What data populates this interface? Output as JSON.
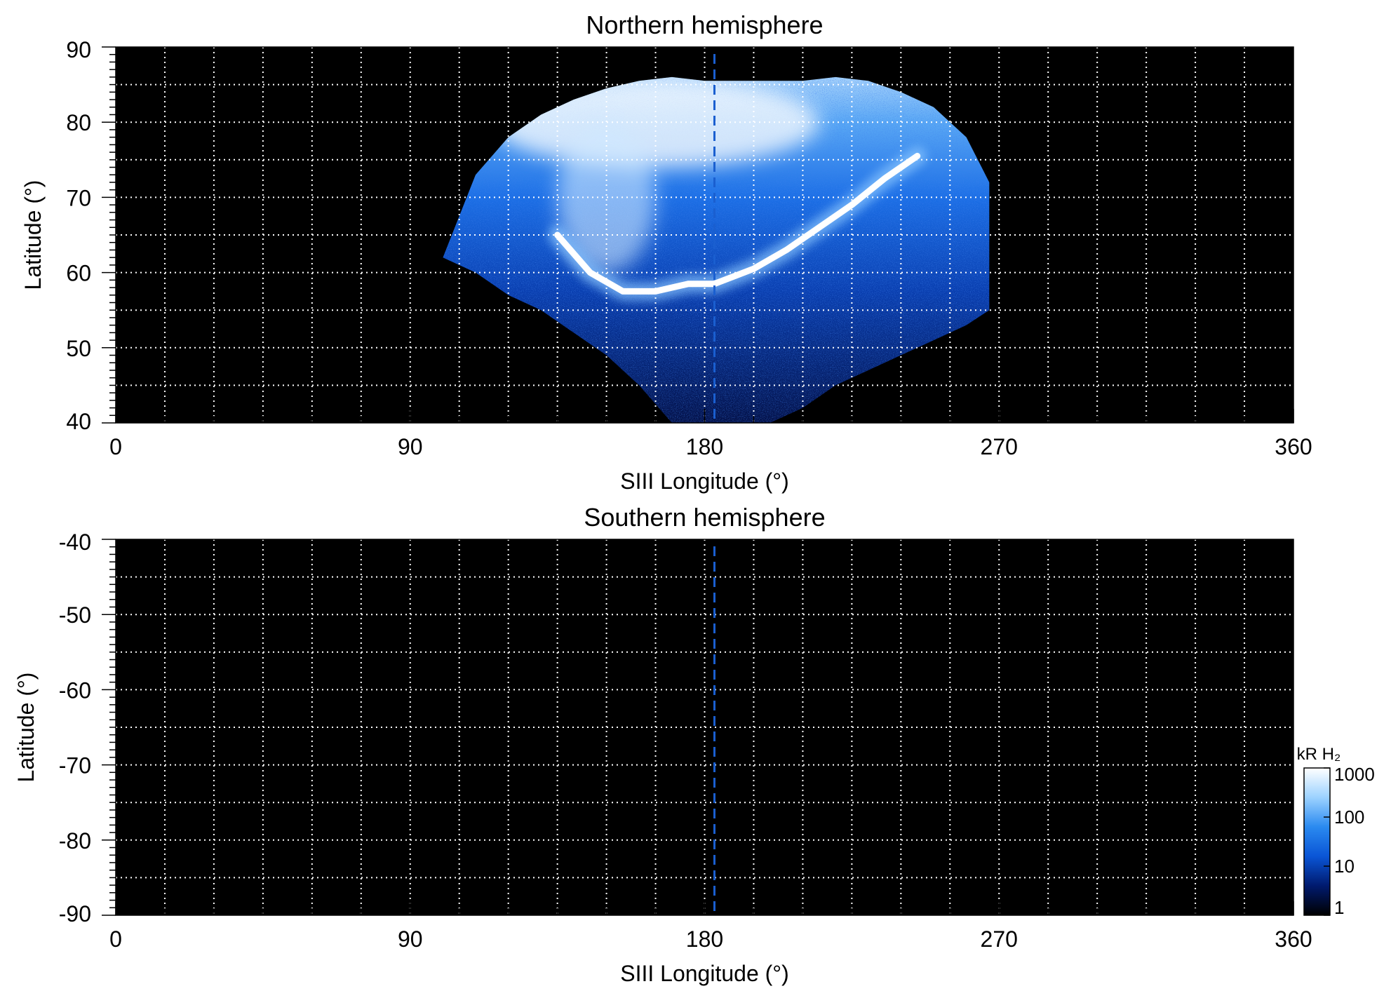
{
  "chart_data": [
    {
      "type": "heatmap",
      "title": "Northern hemisphere",
      "xlabel": "SIII Longitude (°)",
      "ylabel": "Latitude (°)",
      "xlim": [
        0,
        360
      ],
      "ylim": [
        40,
        90
      ],
      "x_ticks": [
        0,
        90,
        180,
        270,
        360
      ],
      "y_ticks": [
        40,
        50,
        60,
        70,
        80,
        90
      ],
      "grid": true,
      "reference_line": {
        "x": 183,
        "style": "dashed",
        "color": "#1a5fd0"
      },
      "main_oval": {
        "longitude": [
          135,
          145,
          155,
          165,
          175,
          183,
          195,
          205,
          215,
          225,
          235,
          245
        ],
        "latitude": [
          65,
          60,
          57.5,
          57.5,
          58.5,
          58.5,
          60.5,
          63,
          66,
          69,
          72.5,
          75.5
        ]
      },
      "emission_coverage": {
        "longitude": [
          100,
          110,
          120,
          130,
          140,
          150,
          160,
          170,
          180,
          190,
          200,
          210,
          220,
          230,
          240,
          250,
          260,
          267
        ],
        "lat_max": [
          62,
          73,
          78,
          81,
          83,
          84.5,
          85.5,
          86,
          85.5,
          85.5,
          85.5,
          85.5,
          86,
          85.5,
          84,
          82,
          78,
          72
        ],
        "lat_min": [
          62,
          60,
          57,
          55,
          52,
          49,
          45,
          40,
          40,
          40,
          40,
          42,
          45,
          47,
          49,
          51,
          53,
          55
        ]
      }
    },
    {
      "type": "heatmap",
      "title": "Southern hemisphere",
      "xlabel": "SIII Longitude (°)",
      "ylabel": "Latitude (°)",
      "xlim": [
        0,
        360
      ],
      "ylim": [
        -90,
        -40
      ],
      "x_ticks": [
        0,
        90,
        180,
        270,
        360
      ],
      "y_ticks": [
        -40,
        -50,
        -60,
        -70,
        -80,
        -90
      ],
      "grid": true,
      "reference_line": {
        "x": 183,
        "style": "dashed",
        "color": "#1a5fd0"
      }
    }
  ],
  "colorbar": {
    "label": "kR H₂",
    "scale": "log",
    "range": [
      1,
      1000
    ],
    "ticks": [
      "1000",
      "100",
      "10",
      "1"
    ],
    "colors": [
      "#000000",
      "#001a6e",
      "#0a55d6",
      "#2a8af0",
      "#9cd2ff",
      "#ffffff"
    ]
  },
  "colors": {
    "background": "#000000",
    "grid": "#ffffff",
    "frame": "#000000"
  }
}
